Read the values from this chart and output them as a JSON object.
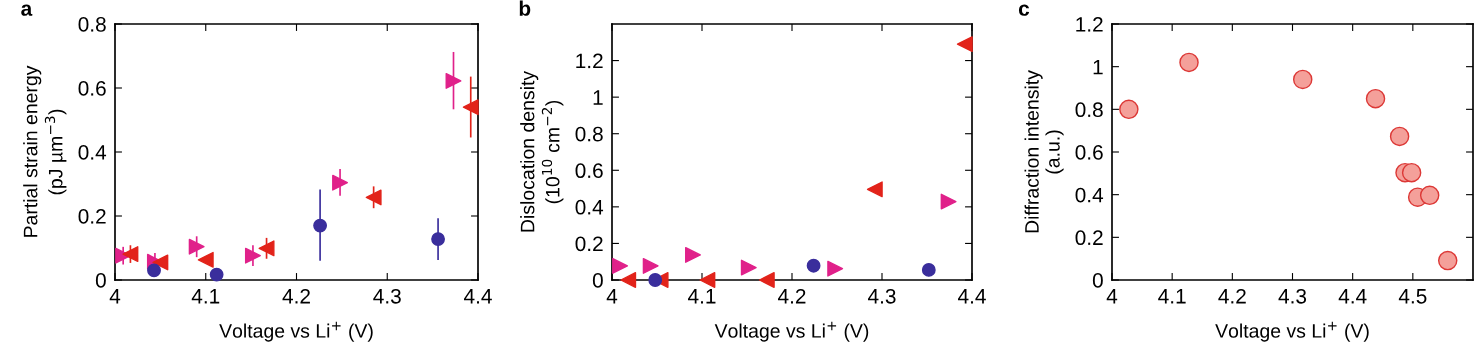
{
  "chart_data": [
    {
      "type": "scatter",
      "title": "a",
      "xlabel": "Voltage vs Li$^{+}$ (V)",
      "ylabel": "Partial strain energy\n(pJ µm$^{−3}$)",
      "xlim": [
        4,
        4.4
      ],
      "xticks": [
        4,
        4.1,
        4.2,
        4.3,
        4.4
      ],
      "ylim": [
        0,
        0.8
      ],
      "yticks": [
        0,
        0.2,
        0.4,
        0.6,
        0.8
      ],
      "grid": false,
      "legend": false,
      "series": [
        {
          "color": "#e0218a",
          "marker": "triangle-right",
          "x": [
            4.009,
            4.044,
            4.09,
            4.152,
            4.248,
            4.373
          ],
          "values": [
            0.076,
            0.057,
            0.104,
            0.076,
            0.304,
            0.622
          ],
          "errors": [
            0.025,
            0.025,
            0.03,
            0.03,
            [
              0.266,
              0.344
            ],
            [
              0.536,
              0.71
            ]
          ]
        },
        {
          "color": "#e2231a",
          "marker": "triangle-left",
          "x": [
            4.017,
            4.05,
            4.1,
            4.167,
            4.285,
            4.392
          ],
          "values": [
            0.081,
            0.055,
            0.063,
            0.099,
            0.258,
            0.54
          ],
          "errors": [
            0.025,
            null,
            null,
            0.03,
            [
              0.227,
              0.29
            ],
            [
              0.448,
              0.633
            ]
          ]
        },
        {
          "color": "#3a2e9c",
          "marker": "circle",
          "x": [
            4.043,
            4.112,
            4.226,
            4.356
          ],
          "values": [
            0.03,
            0.017,
            0.17,
            0.128
          ],
          "errors": [
            null,
            null,
            [
              0.063,
              0.28
            ],
            [
              0.065,
              0.19
            ]
          ]
        }
      ]
    },
    {
      "type": "scatter",
      "title": "b",
      "xlabel": "Voltage vs Li$^{+}$ (V)",
      "ylabel": "Dislocation density\n(10$^{10}$ cm$^{−2}$)",
      "xlim": [
        4,
        4.4
      ],
      "xticks": [
        4,
        4.1,
        4.2,
        4.3,
        4.4
      ],
      "ylim": [
        0,
        1.4
      ],
      "yticks": [
        0,
        0.2,
        0.4,
        0.6,
        0.8,
        1,
        1.2
      ],
      "grid": false,
      "legend": false,
      "series": [
        {
          "color": "#e0218a",
          "marker": "triangle-right",
          "x": [
            4.009,
            4.043,
            4.09,
            4.152,
            4.248,
            4.374
          ],
          "values": [
            0.077,
            0.077,
            0.137,
            0.068,
            0.062,
            0.429
          ]
        },
        {
          "color": "#e2231a",
          "marker": "triangle-left",
          "x": [
            4.018,
            4.054,
            4.106,
            4.172,
            4.292,
            4.392
          ],
          "values": [
            0,
            0,
            0,
            0,
            0.496,
            1.29
          ]
        },
        {
          "color": "#3a2e9c",
          "marker": "circle",
          "x": [
            4.048,
            4.224,
            4.352
          ],
          "values": [
            0,
            0.078,
            0.055
          ]
        }
      ]
    },
    {
      "type": "scatter",
      "title": "c",
      "xlabel": "Voltage vs Li$^{+}$ (V)",
      "ylabel": "Diffraction intensity\n(a.u.)",
      "xlim": [
        4,
        4.6
      ],
      "xticks": [
        4,
        4.1,
        4.2,
        4.3,
        4.4,
        4.5
      ],
      "ylim": [
        0,
        1.2
      ],
      "yticks": [
        0,
        0.2,
        0.4,
        0.6,
        0.8,
        1,
        1.2
      ],
      "grid": false,
      "legend": false,
      "series": [
        {
          "color": "#f4a09a",
          "marker": "circle",
          "x": [
            4.028,
            4.128,
            4.317,
            4.438,
            4.478,
            4.487,
            4.498,
            4.508,
            4.528,
            4.558
          ],
          "values": [
            0.8,
            1.02,
            0.94,
            0.85,
            0.673,
            0.503,
            0.503,
            0.388,
            0.397,
            0.091
          ]
        }
      ]
    }
  ]
}
